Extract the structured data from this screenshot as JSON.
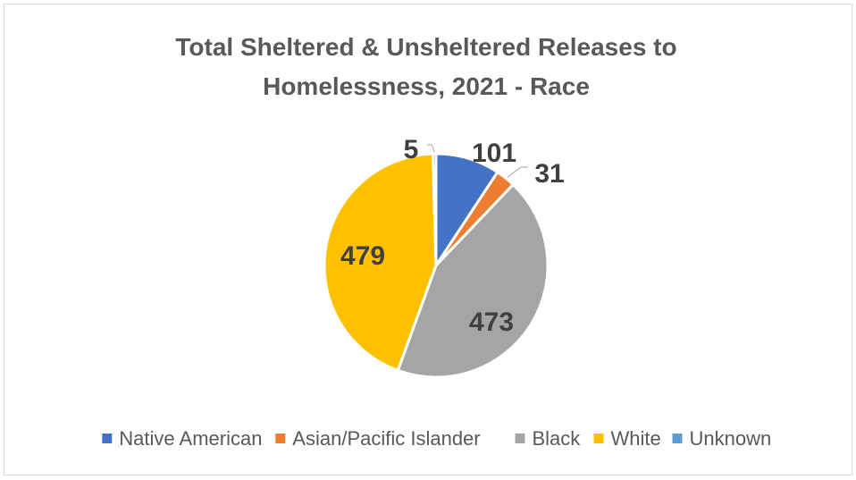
{
  "chart_data": {
    "type": "pie",
    "title": [
      "Total Sheltered & Unsheltered Releases to",
      "Homelessness, 2021 - Race"
    ],
    "categories": [
      "Native American",
      "Asian/Pacific Islander",
      "Black",
      "White",
      "Unknown"
    ],
    "values": [
      101,
      31,
      473,
      479,
      5
    ],
    "colors": [
      "#4472C4",
      "#ED7D31",
      "#A5A5A5",
      "#FFC000",
      "#5B9BD5"
    ],
    "data_labels": [
      "101",
      "31",
      "473",
      "479",
      "5"
    ],
    "legend_position": "bottom",
    "start_angle": "12 o'clock",
    "direction": "clockwise"
  }
}
